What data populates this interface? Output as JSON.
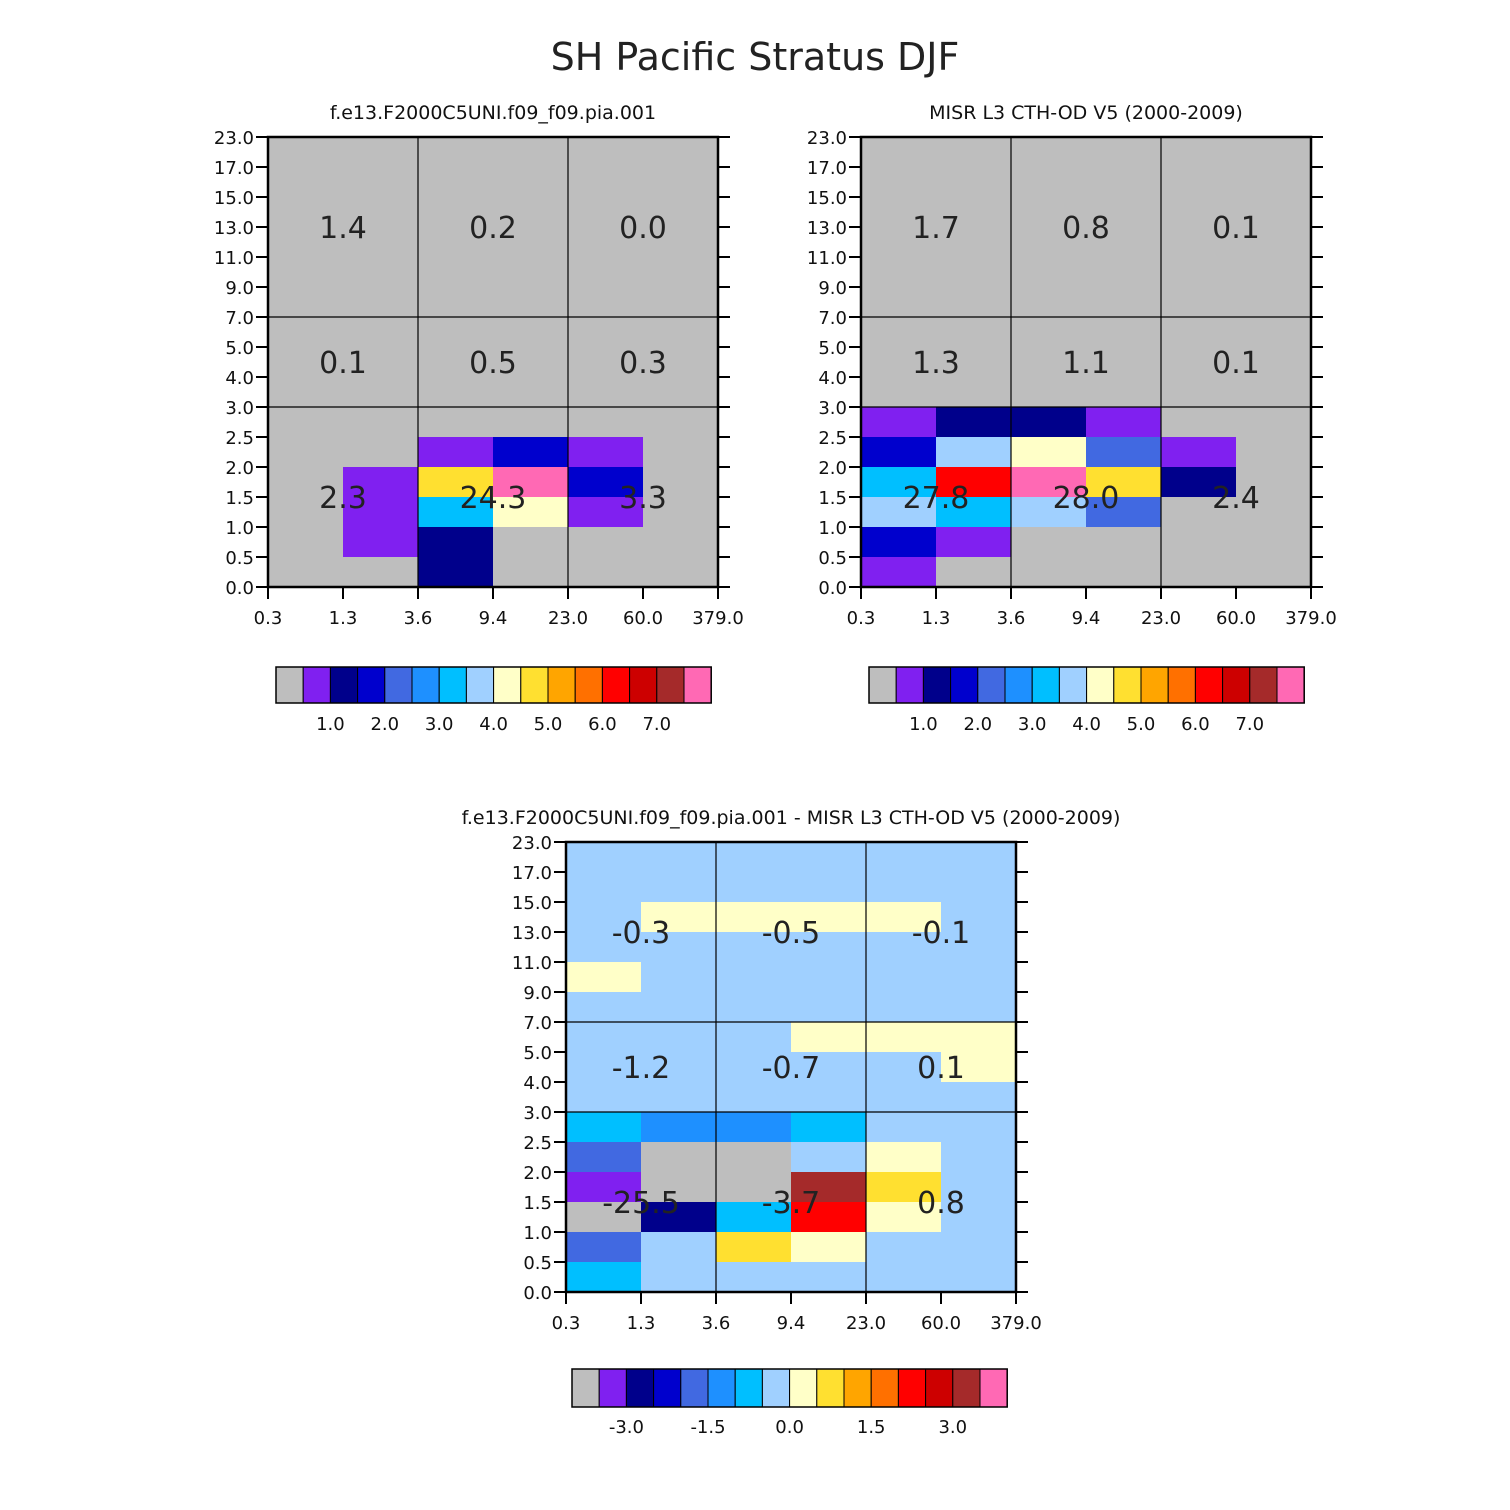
{
  "title": "SH Pacific Stratus DJF",
  "palette": {
    "gray": "#bebebe",
    "purple": "#8020f0",
    "navy": "#00008b",
    "blue": "#0000cd",
    "royal": "#4169e1",
    "dodger": "#1e90ff",
    "sky": "#00bfff",
    "lightsky": "#a0d0ff",
    "cream": "#ffffc8",
    "gold": "#ffe030",
    "orange": "#ffa500",
    "darkorange": "#ff7000",
    "red": "#ff0000",
    "crimson": "#cd0000",
    "brown": "#a52a2a",
    "pink": "#ff69b4"
  },
  "chart_data": [
    {
      "type": "heatmap",
      "title": "f.e13.F2000C5UNI.f09_f09.pia.001",
      "x_ticks": [
        "0.3",
        "1.3",
        "3.6",
        "9.4",
        "23.0",
        "60.0",
        "379.0"
      ],
      "y_ticks": [
        "0.0",
        "0.5",
        "1.0",
        "1.5",
        "2.0",
        "2.5",
        "3.0",
        "4.0",
        "5.0",
        "7.0",
        "9.0",
        "11.0",
        "13.0",
        "15.0",
        "17.0",
        "23.0"
      ],
      "background": "gray",
      "grid_x": [
        2,
        4
      ],
      "grid_y": [
        6,
        9
      ],
      "cells": [
        {
          "x": 1,
          "y": 1,
          "c": "purple"
        },
        {
          "x": 1,
          "y": 2,
          "c": "purple"
        },
        {
          "x": 1,
          "y": 3,
          "c": "purple"
        },
        {
          "x": 2,
          "y": 0,
          "c": "navy"
        },
        {
          "x": 2,
          "y": 1,
          "c": "navy"
        },
        {
          "x": 2,
          "y": 2,
          "c": "sky"
        },
        {
          "x": 2,
          "y": 3,
          "c": "gold"
        },
        {
          "x": 2,
          "y": 4,
          "c": "purple"
        },
        {
          "x": 3,
          "y": 2,
          "c": "cream"
        },
        {
          "x": 3,
          "y": 3,
          "c": "pink"
        },
        {
          "x": 3,
          "y": 4,
          "c": "blue"
        },
        {
          "x": 4,
          "y": 2,
          "c": "purple"
        },
        {
          "x": 4,
          "y": 3,
          "c": "blue"
        },
        {
          "x": 4,
          "y": 4,
          "c": "purple"
        }
      ],
      "region_labels": [
        {
          "text": "1.4",
          "xc": 1,
          "yc": 12
        },
        {
          "text": "0.2",
          "xc": 3,
          "yc": 12
        },
        {
          "text": "0.0",
          "xc": 5,
          "yc": 12
        },
        {
          "text": "0.1",
          "xc": 1,
          "yc": 7.5
        },
        {
          "text": "0.5",
          "xc": 3,
          "yc": 7.5
        },
        {
          "text": "0.3",
          "xc": 5,
          "yc": 7.5
        },
        {
          "text": "2.3",
          "xc": 1,
          "yc": 3
        },
        {
          "text": "24.3",
          "xc": 3,
          "yc": 3
        },
        {
          "text": "3.3",
          "xc": 5,
          "yc": 3
        }
      ],
      "colorbar": {
        "colors": [
          "gray",
          "purple",
          "navy",
          "blue",
          "royal",
          "dodger",
          "sky",
          "lightsky",
          "cream",
          "gold",
          "orange",
          "darkorange",
          "red",
          "crimson",
          "brown",
          "pink"
        ],
        "labels": [
          {
            "text": "1.0",
            "after": 2
          },
          {
            "text": "2.0",
            "after": 4
          },
          {
            "text": "3.0",
            "after": 6
          },
          {
            "text": "4.0",
            "after": 8
          },
          {
            "text": "5.0",
            "after": 10
          },
          {
            "text": "6.0",
            "after": 12
          },
          {
            "text": "7.0",
            "after": 14
          }
        ]
      }
    },
    {
      "type": "heatmap",
      "title": "MISR L3 CTH-OD V5 (2000-2009)",
      "x_ticks": [
        "0.3",
        "1.3",
        "3.6",
        "9.4",
        "23.0",
        "60.0",
        "379.0"
      ],
      "y_ticks": [
        "0.0",
        "0.5",
        "1.0",
        "1.5",
        "2.0",
        "2.5",
        "3.0",
        "4.0",
        "5.0",
        "7.0",
        "9.0",
        "11.0",
        "13.0",
        "15.0",
        "17.0",
        "23.0"
      ],
      "background": "gray",
      "grid_x": [
        2,
        4
      ],
      "grid_y": [
        6,
        9
      ],
      "cells": [
        {
          "x": 0,
          "y": 0,
          "c": "purple"
        },
        {
          "x": 0,
          "y": 1,
          "c": "blue"
        },
        {
          "x": 0,
          "y": 2,
          "c": "lightsky"
        },
        {
          "x": 0,
          "y": 3,
          "c": "sky"
        },
        {
          "x": 0,
          "y": 4,
          "c": "blue"
        },
        {
          "x": 0,
          "y": 5,
          "c": "purple"
        },
        {
          "x": 1,
          "y": 1,
          "c": "purple"
        },
        {
          "x": 1,
          "y": 2,
          "c": "sky"
        },
        {
          "x": 1,
          "y": 3,
          "c": "red"
        },
        {
          "x": 1,
          "y": 4,
          "c": "lightsky"
        },
        {
          "x": 1,
          "y": 5,
          "c": "navy"
        },
        {
          "x": 2,
          "y": 2,
          "c": "lightsky"
        },
        {
          "x": 2,
          "y": 3,
          "c": "pink"
        },
        {
          "x": 2,
          "y": 4,
          "c": "cream"
        },
        {
          "x": 2,
          "y": 5,
          "c": "navy"
        },
        {
          "x": 3,
          "y": 2,
          "c": "royal"
        },
        {
          "x": 3,
          "y": 3,
          "c": "gold"
        },
        {
          "x": 3,
          "y": 4,
          "c": "royal"
        },
        {
          "x": 3,
          "y": 5,
          "c": "purple"
        },
        {
          "x": 4,
          "y": 3,
          "c": "navy"
        },
        {
          "x": 4,
          "y": 4,
          "c": "purple"
        }
      ],
      "region_labels": [
        {
          "text": "1.7",
          "xc": 1,
          "yc": 12
        },
        {
          "text": "0.8",
          "xc": 3,
          "yc": 12
        },
        {
          "text": "0.1",
          "xc": 5,
          "yc": 12
        },
        {
          "text": "1.3",
          "xc": 1,
          "yc": 7.5
        },
        {
          "text": "1.1",
          "xc": 3,
          "yc": 7.5
        },
        {
          "text": "0.1",
          "xc": 5,
          "yc": 7.5
        },
        {
          "text": "27.8",
          "xc": 1,
          "yc": 3
        },
        {
          "text": "28.0",
          "xc": 3,
          "yc": 3
        },
        {
          "text": "2.4",
          "xc": 5,
          "yc": 3
        }
      ],
      "colorbar": {
        "colors": [
          "gray",
          "purple",
          "navy",
          "blue",
          "royal",
          "dodger",
          "sky",
          "lightsky",
          "cream",
          "gold",
          "orange",
          "darkorange",
          "red",
          "crimson",
          "brown",
          "pink"
        ],
        "labels": [
          {
            "text": "1.0",
            "after": 2
          },
          {
            "text": "2.0",
            "after": 4
          },
          {
            "text": "3.0",
            "after": 6
          },
          {
            "text": "4.0",
            "after": 8
          },
          {
            "text": "5.0",
            "after": 10
          },
          {
            "text": "6.0",
            "after": 12
          },
          {
            "text": "7.0",
            "after": 14
          }
        ]
      }
    },
    {
      "type": "heatmap",
      "title": "f.e13.F2000C5UNI.f09_f09.pia.001 - MISR L3 CTH-OD V5 (2000-2009)",
      "x_ticks": [
        "0.3",
        "1.3",
        "3.6",
        "9.4",
        "23.0",
        "60.0",
        "379.0"
      ],
      "y_ticks": [
        "0.0",
        "0.5",
        "1.0",
        "1.5",
        "2.0",
        "2.5",
        "3.0",
        "4.0",
        "5.0",
        "7.0",
        "9.0",
        "11.0",
        "13.0",
        "15.0",
        "17.0",
        "23.0"
      ],
      "background": "lightsky",
      "grid_x": [
        2,
        4
      ],
      "grid_y": [
        6,
        9
      ],
      "cells": [
        {
          "x": 0,
          "y": 0,
          "c": "sky"
        },
        {
          "x": 0,
          "y": 1,
          "c": "royal"
        },
        {
          "x": 0,
          "y": 2,
          "c": "gray"
        },
        {
          "x": 0,
          "y": 3,
          "c": "purple"
        },
        {
          "x": 0,
          "y": 4,
          "c": "royal"
        },
        {
          "x": 0,
          "y": 5,
          "c": "sky"
        },
        {
          "x": 1,
          "y": 2,
          "c": "navy"
        },
        {
          "x": 1,
          "y": 3,
          "c": "gray"
        },
        {
          "x": 1,
          "y": 4,
          "c": "gray"
        },
        {
          "x": 1,
          "y": 5,
          "c": "dodger"
        },
        {
          "x": 2,
          "y": 1,
          "c": "gold"
        },
        {
          "x": 2,
          "y": 2,
          "c": "sky"
        },
        {
          "x": 2,
          "y": 3,
          "c": "gray"
        },
        {
          "x": 2,
          "y": 4,
          "c": "gray"
        },
        {
          "x": 2,
          "y": 5,
          "c": "dodger"
        },
        {
          "x": 3,
          "y": 1,
          "c": "cream"
        },
        {
          "x": 3,
          "y": 2,
          "c": "red"
        },
        {
          "x": 3,
          "y": 3,
          "c": "brown"
        },
        {
          "x": 3,
          "y": 5,
          "c": "sky"
        },
        {
          "x": 4,
          "y": 2,
          "c": "cream"
        },
        {
          "x": 4,
          "y": 3,
          "c": "gold"
        },
        {
          "x": 4,
          "y": 4,
          "c": "cream"
        },
        {
          "x": 4,
          "y": 8,
          "c": "cream"
        },
        {
          "x": 5,
          "y": 7,
          "c": "cream"
        },
        {
          "x": 5,
          "y": 8,
          "c": "cream"
        },
        {
          "x": 3,
          "y": 8,
          "c": "cream"
        },
        {
          "x": 0,
          "y": 10,
          "c": "cream"
        },
        {
          "x": 1,
          "y": 12,
          "c": "cream"
        },
        {
          "x": 2,
          "y": 12,
          "c": "cream"
        },
        {
          "x": 3,
          "y": 12,
          "c": "cream"
        },
        {
          "x": 4,
          "y": 12,
          "c": "cream"
        }
      ],
      "region_labels": [
        {
          "text": "-0.3",
          "xc": 1,
          "yc": 12
        },
        {
          "text": "-0.5",
          "xc": 3,
          "yc": 12
        },
        {
          "text": "-0.1",
          "xc": 5,
          "yc": 12
        },
        {
          "text": "-1.2",
          "xc": 1,
          "yc": 7.5
        },
        {
          "text": "-0.7",
          "xc": 3,
          "yc": 7.5
        },
        {
          "text": "0.1",
          "xc": 5,
          "yc": 7.5
        },
        {
          "text": "-25.5",
          "xc": 1,
          "yc": 3
        },
        {
          "text": "-3.7",
          "xc": 3,
          "yc": 3
        },
        {
          "text": "0.8",
          "xc": 5,
          "yc": 3
        }
      ],
      "colorbar": {
        "colors": [
          "gray",
          "purple",
          "navy",
          "blue",
          "royal",
          "dodger",
          "sky",
          "lightsky",
          "cream",
          "gold",
          "orange",
          "darkorange",
          "red",
          "crimson",
          "brown",
          "pink"
        ],
        "labels": [
          {
            "text": "-3.0",
            "after": 2
          },
          {
            "text": "-1.5",
            "after": 5
          },
          {
            "text": "0.0",
            "after": 8
          },
          {
            "text": "1.5",
            "after": 11
          },
          {
            "text": "3.0",
            "after": 14
          }
        ]
      }
    }
  ]
}
